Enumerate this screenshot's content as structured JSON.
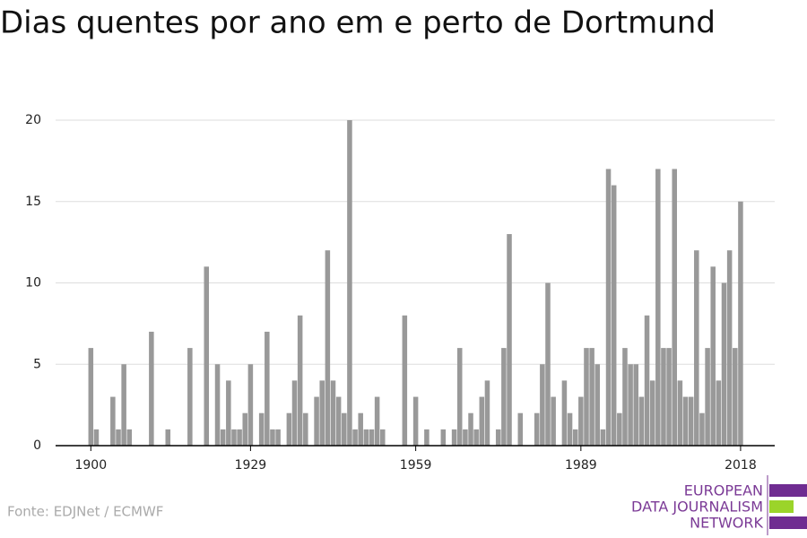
{
  "chart_data": {
    "type": "bar",
    "title": "Dias quentes por ano em e perto de Dortmund",
    "source": "Fonte: EDJNet / ECMWF",
    "logo": [
      "EUROPEAN",
      "DATA JOURNALISM",
      "NETWORK"
    ],
    "color": "#999999",
    "x": [
      1900,
      1901,
      1902,
      1903,
      1904,
      1905,
      1906,
      1907,
      1908,
      1909,
      1910,
      1911,
      1912,
      1913,
      1914,
      1915,
      1916,
      1917,
      1918,
      1919,
      1920,
      1921,
      1922,
      1923,
      1924,
      1925,
      1926,
      1927,
      1928,
      1929,
      1930,
      1931,
      1932,
      1933,
      1934,
      1935,
      1936,
      1937,
      1938,
      1939,
      1940,
      1941,
      1942,
      1943,
      1944,
      1945,
      1946,
      1947,
      1948,
      1949,
      1950,
      1951,
      1952,
      1953,
      1954,
      1955,
      1956,
      1957,
      1958,
      1959,
      1960,
      1961,
      1962,
      1963,
      1964,
      1965,
      1966,
      1967,
      1968,
      1969,
      1970,
      1971,
      1972,
      1973,
      1974,
      1975,
      1976,
      1977,
      1978,
      1979,
      1980,
      1981,
      1982,
      1983,
      1984,
      1985,
      1986,
      1987,
      1988,
      1989,
      1990,
      1991,
      1992,
      1993,
      1994,
      1995,
      1996,
      1997,
      1998,
      1999,
      2000,
      2001,
      2002,
      2003,
      2004,
      2005,
      2006,
      2007,
      2008,
      2009,
      2010,
      2011,
      2012,
      2013,
      2014,
      2015,
      2016,
      2017,
      2018
    ],
    "values": [
      6,
      1,
      0,
      0,
      3,
      1,
      5,
      1,
      0,
      0,
      0,
      7,
      0,
      0,
      1,
      0,
      0,
      0,
      6,
      0,
      0,
      11,
      0,
      5,
      1,
      4,
      1,
      1,
      2,
      5,
      0,
      2,
      7,
      1,
      1,
      0,
      2,
      4,
      8,
      2,
      0,
      3,
      4,
      12,
      4,
      3,
      2,
      20,
      1,
      2,
      1,
      1,
      3,
      1,
      0,
      0,
      0,
      8,
      0,
      3,
      0,
      1,
      0,
      0,
      1,
      0,
      1,
      6,
      1,
      2,
      1,
      3,
      4,
      0,
      1,
      6,
      13,
      0,
      2,
      0,
      0,
      2,
      5,
      10,
      3,
      0,
      4,
      2,
      1,
      3,
      6,
      6,
      5,
      1,
      17,
      16,
      2,
      6,
      5,
      5,
      3,
      8,
      4,
      17,
      6,
      6,
      17,
      4,
      3,
      3,
      12,
      2,
      6,
      11,
      4,
      10,
      12,
      6,
      15
    ],
    "xlim": [
      1893.6,
      2024.2
    ],
    "xticks": [
      1900,
      1929,
      1959,
      1989,
      2018
    ],
    "ylim": [
      0,
      20
    ],
    "yticks": [
      0,
      5,
      10,
      15,
      20
    ],
    "grid": true
  }
}
